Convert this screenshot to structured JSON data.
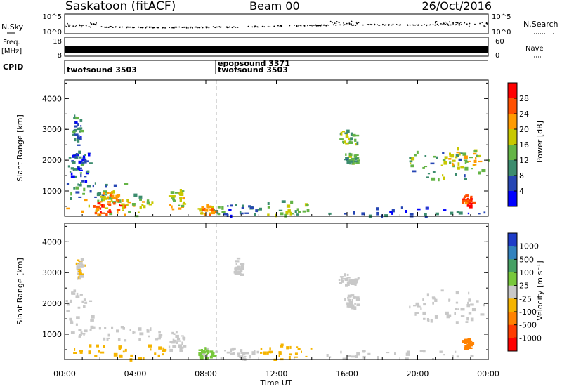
{
  "header": {
    "station": "Saskatoon (fitACF)",
    "beam": "Beam 00",
    "date": "26/Oct/2016"
  },
  "noise_panel": {
    "left_label": "N.Sky",
    "right_label": "N.Search",
    "left_ticks": [
      "10^5",
      "10^0"
    ],
    "right_ticks": [
      "10^5",
      "10^0"
    ]
  },
  "freq_panel": {
    "left_label_1": "Freq.",
    "left_label_2": "[MHz]",
    "left_ticks": [
      "18",
      "8"
    ],
    "right_label": "Nave",
    "right_ticks": [
      "60",
      "0"
    ]
  },
  "cpid_panel": {
    "label": "CPID",
    "segments": [
      "twofsound 3503",
      "epopsound 3371",
      "twofsound 3503"
    ]
  },
  "power_panel": {
    "ylabel": "Slant Range [km]",
    "yticks": [
      "4000",
      "3000",
      "2000",
      "1000"
    ],
    "colorbar_label": "Power [dB]",
    "colorbar_ticks": [
      "28",
      "24",
      "20",
      "16",
      "12",
      "8",
      "4"
    ],
    "colors": [
      "#0000ff",
      "#2646b4",
      "#3c8c6e",
      "#64b446",
      "#c8c800",
      "#ff9b00",
      "#ff5000",
      "#ff0000"
    ]
  },
  "velocity_panel": {
    "ylabel": "Slant Range [km]",
    "yticks": [
      "4000",
      "3000",
      "2000",
      "1000"
    ],
    "colorbar_label": "Velocity [m s⁻¹]",
    "colorbar_ticks": [
      "1000",
      "500",
      "100",
      "25",
      "-25",
      "-100",
      "-500",
      "-1000"
    ],
    "colors": [
      "#1e3cc8",
      "#3282be",
      "#46a064",
      "#78c83c",
      "#c8c8c8",
      "#f5b400",
      "#ff8200",
      "#ff3c00",
      "#ff0000"
    ]
  },
  "xaxis": {
    "label": "Time UT",
    "ticks": [
      "00:00",
      "04:00",
      "08:00",
      "12:00",
      "16:00",
      "20:00",
      "00:00"
    ]
  },
  "chart_data": [
    {
      "type": "heatmap",
      "name": "power",
      "xlim": [
        0,
        24
      ],
      "ylim": [
        180,
        4600
      ],
      "marker_time_h": 8.6,
      "regions": [
        {
          "t": [
            0.0,
            1.2
          ],
          "r": [
            900,
            2200
          ],
          "v": 8
        },
        {
          "t": [
            0.2,
            1.5
          ],
          "r": [
            1600,
            2400
          ],
          "v": 6
        },
        {
          "t": [
            0.4,
            0.9
          ],
          "r": [
            2500,
            3500
          ],
          "v": 8
        },
        {
          "t": [
            0.0,
            4.5
          ],
          "r": [
            700,
            1300
          ],
          "v": 10
        },
        {
          "t": [
            0.0,
            5.5
          ],
          "r": [
            200,
            800
          ],
          "v": 18
        },
        {
          "t": [
            1.5,
            3.5
          ],
          "r": [
            250,
            700
          ],
          "v": 26
        },
        {
          "t": [
            2.0,
            3.2
          ],
          "r": [
            700,
            1100
          ],
          "v": 20
        },
        {
          "t": [
            5.8,
            6.8
          ],
          "r": [
            350,
            1100
          ],
          "v": 18
        },
        {
          "t": [
            7.5,
            8.5
          ],
          "r": [
            250,
            600
          ],
          "v": 20
        },
        {
          "t": [
            8.5,
            11.0
          ],
          "r": [
            200,
            600
          ],
          "v": 8
        },
        {
          "t": [
            11.0,
            14.0
          ],
          "r": [
            200,
            700
          ],
          "v": 14
        },
        {
          "t": [
            15.5,
            16.6
          ],
          "r": [
            2500,
            3000
          ],
          "v": 14
        },
        {
          "t": [
            15.8,
            16.6
          ],
          "r": [
            1900,
            2300
          ],
          "v": 12
        },
        {
          "t": [
            19.5,
            24.0
          ],
          "r": [
            1400,
            2500
          ],
          "v": 12
        },
        {
          "t": [
            21.5,
            23.5
          ],
          "r": [
            1800,
            2300
          ],
          "v": 18
        },
        {
          "t": [
            22.5,
            23.1
          ],
          "r": [
            550,
            900
          ],
          "v": 28
        },
        {
          "t": [
            14.0,
            24.0
          ],
          "r": [
            200,
            500
          ],
          "v": 6
        }
      ]
    },
    {
      "type": "heatmap",
      "name": "velocity",
      "xlim": [
        0,
        24
      ],
      "ylim": [
        180,
        4600
      ],
      "marker_time_h": 8.6,
      "regions": [
        {
          "t": [
            0.0,
            1.5
          ],
          "r": [
            900,
            2500
          ],
          "v": 0
        },
        {
          "t": [
            0.6,
            1.0
          ],
          "r": [
            2800,
            3500
          ],
          "v": -30
        },
        {
          "t": [
            0.0,
            5.5
          ],
          "r": [
            700,
            1300
          ],
          "v": 0
        },
        {
          "t": [
            0.0,
            6.0
          ],
          "r": [
            200,
            700
          ],
          "v": -60
        },
        {
          "t": [
            5.8,
            6.8
          ],
          "r": [
            400,
            1100
          ],
          "v": 5
        },
        {
          "t": [
            7.5,
            8.5
          ],
          "r": [
            250,
            600
          ],
          "v": 40
        },
        {
          "t": [
            8.5,
            11.0
          ],
          "r": [
            200,
            600
          ],
          "v": 0
        },
        {
          "t": [
            11.0,
            14.0
          ],
          "r": [
            200,
            700
          ],
          "v": -50
        },
        {
          "t": [
            9.5,
            10.0
          ],
          "r": [
            2900,
            3500
          ],
          "v": 0
        },
        {
          "t": [
            15.5,
            16.6
          ],
          "r": [
            2500,
            3000
          ],
          "v": 0
        },
        {
          "t": [
            15.8,
            16.6
          ],
          "r": [
            1900,
            2300
          ],
          "v": 0
        },
        {
          "t": [
            19.5,
            24.0
          ],
          "r": [
            1400,
            2500
          ],
          "v": 0
        },
        {
          "t": [
            22.5,
            23.1
          ],
          "r": [
            550,
            900
          ],
          "v": -300
        },
        {
          "t": [
            14.0,
            24.0
          ],
          "r": [
            200,
            500
          ],
          "v": 0
        }
      ]
    }
  ]
}
